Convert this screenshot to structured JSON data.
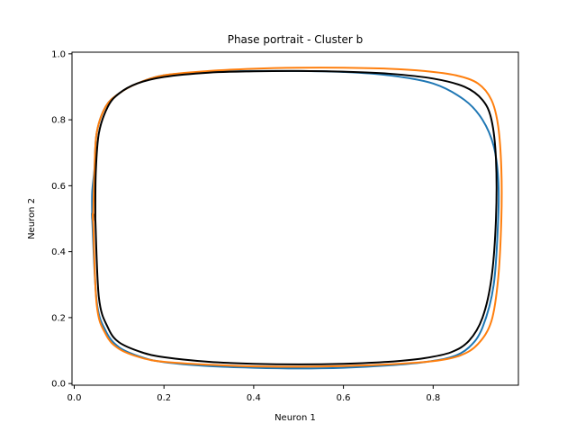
{
  "chart_data": {
    "type": "line",
    "title": "Phase portrait - Cluster b",
    "xlabel": "Neuron 1",
    "ylabel": "Neuron 2",
    "xlim": [
      -0.005,
      0.99
    ],
    "ylim": [
      -0.005,
      1.005
    ],
    "xticks": [
      "0.0",
      "0.2",
      "0.4",
      "0.6",
      "0.8"
    ],
    "yticks": [
      "0.0",
      "0.2",
      "0.4",
      "0.6",
      "0.8",
      "1.0"
    ],
    "grid": false,
    "legend": "none",
    "series": [
      {
        "color": "#1f77b4",
        "x": [
          0.04,
          0.05,
          0.07,
          0.1,
          0.15,
          0.2,
          0.3,
          0.4,
          0.5,
          0.6,
          0.7,
          0.78,
          0.84,
          0.88,
          0.91,
          0.935,
          0.945,
          0.945,
          0.935,
          0.91,
          0.87,
          0.8,
          0.7,
          0.6,
          0.5,
          0.4,
          0.3,
          0.2,
          0.14,
          0.1,
          0.07,
          0.05,
          0.045,
          0.04,
          0.04
        ],
        "y": [
          0.5,
          0.25,
          0.16,
          0.11,
          0.08,
          0.065,
          0.053,
          0.048,
          0.046,
          0.048,
          0.055,
          0.065,
          0.08,
          0.11,
          0.17,
          0.3,
          0.5,
          0.62,
          0.72,
          0.8,
          0.86,
          0.91,
          0.935,
          0.945,
          0.948,
          0.948,
          0.945,
          0.935,
          0.91,
          0.88,
          0.84,
          0.76,
          0.65,
          0.58,
          0.5
        ]
      },
      {
        "color": "#ff7f0e",
        "x": [
          0.042,
          0.05,
          0.07,
          0.1,
          0.15,
          0.2,
          0.3,
          0.4,
          0.5,
          0.6,
          0.7,
          0.8,
          0.86,
          0.9,
          0.93,
          0.945,
          0.952,
          0.952,
          0.945,
          0.93,
          0.9,
          0.85,
          0.78,
          0.7,
          0.6,
          0.5,
          0.4,
          0.3,
          0.2,
          0.14,
          0.1,
          0.07,
          0.05,
          0.045,
          0.042
        ],
        "y": [
          0.5,
          0.24,
          0.15,
          0.105,
          0.078,
          0.066,
          0.057,
          0.052,
          0.051,
          0.053,
          0.058,
          0.068,
          0.085,
          0.12,
          0.19,
          0.32,
          0.5,
          0.65,
          0.78,
          0.86,
          0.91,
          0.935,
          0.948,
          0.955,
          0.958,
          0.958,
          0.955,
          0.948,
          0.935,
          0.91,
          0.88,
          0.84,
          0.76,
          0.64,
          0.5
        ]
      },
      {
        "color": "#000000",
        "x": [
          0.047,
          0.055,
          0.075,
          0.1,
          0.15,
          0.2,
          0.3,
          0.4,
          0.5,
          0.6,
          0.7,
          0.78,
          0.84,
          0.88,
          0.91,
          0.93,
          0.94,
          0.94,
          0.93,
          0.91,
          0.87,
          0.8,
          0.7,
          0.6,
          0.5,
          0.4,
          0.3,
          0.2,
          0.14,
          0.1,
          0.075,
          0.055,
          0.048,
          0.047
        ],
        "y": [
          0.5,
          0.26,
          0.17,
          0.125,
          0.095,
          0.08,
          0.066,
          0.06,
          0.058,
          0.06,
          0.066,
          0.077,
          0.095,
          0.13,
          0.2,
          0.32,
          0.5,
          0.68,
          0.8,
          0.86,
          0.9,
          0.925,
          0.94,
          0.946,
          0.948,
          0.947,
          0.943,
          0.93,
          0.91,
          0.88,
          0.84,
          0.76,
          0.64,
          0.5
        ]
      }
    ]
  }
}
